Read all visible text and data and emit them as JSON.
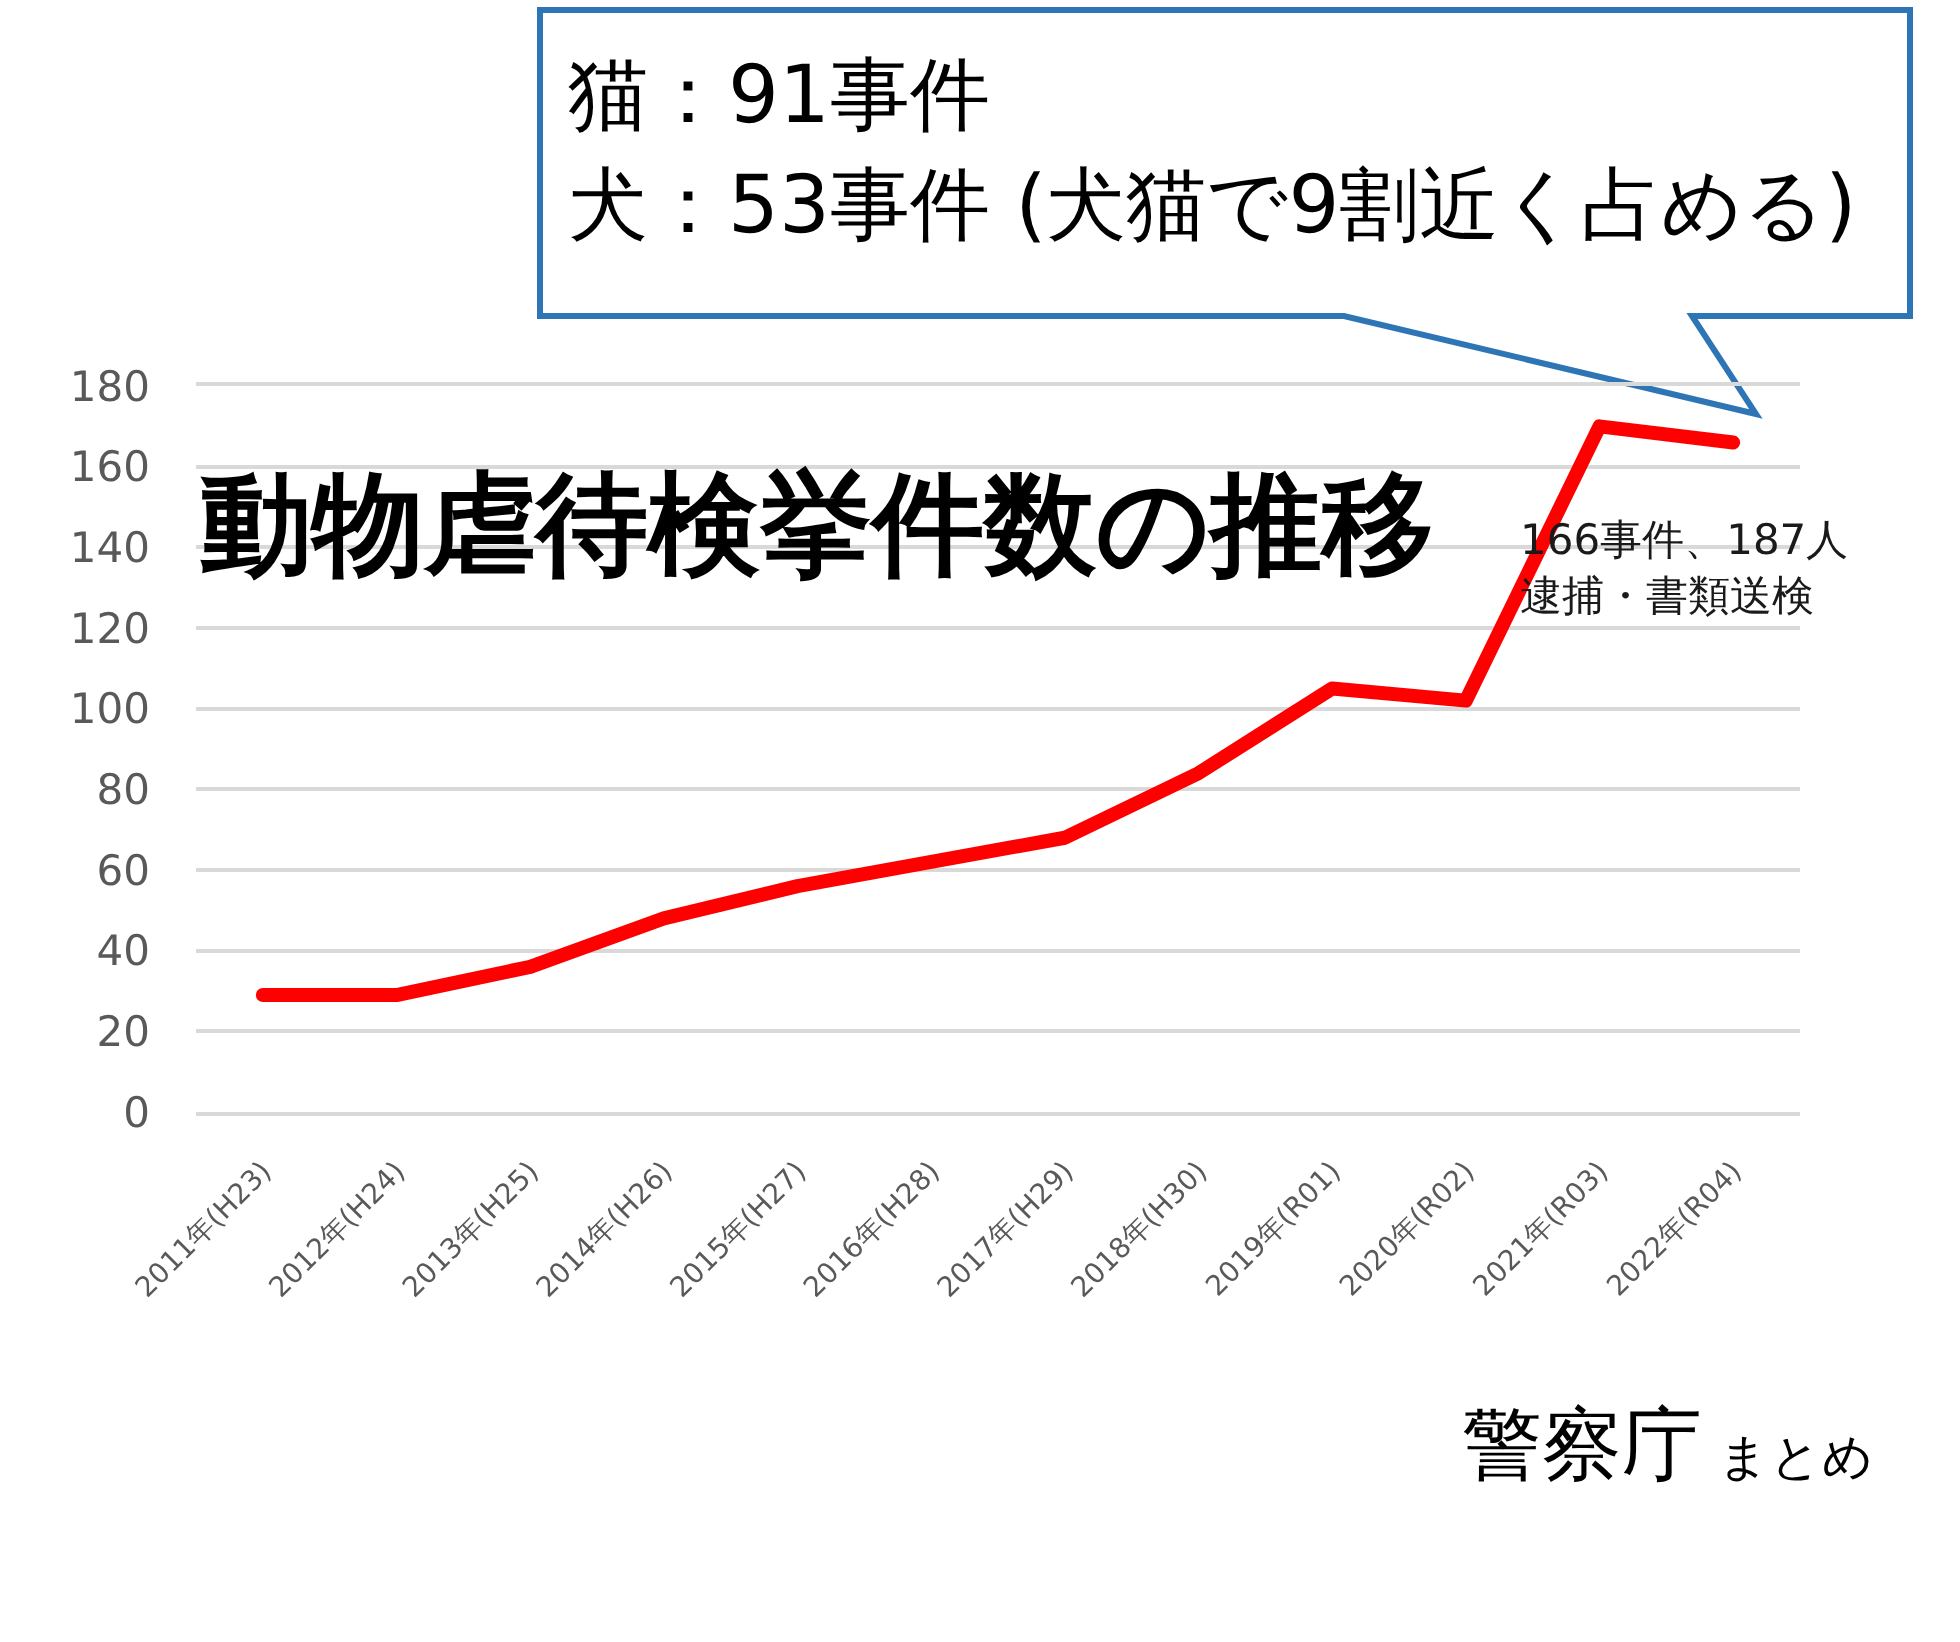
{
  "chart_data": {
    "type": "line",
    "title": "動物虐待検挙件数の推移",
    "categories": [
      "2011年(H23)",
      "2012年(H24)",
      "2013年(H25)",
      "2014年(H26)",
      "2015年(H27)",
      "2016年(H28)",
      "2017年(H29)",
      "2018年(H30)",
      "2019年(R01)",
      "2020年(R02)",
      "2021年(R03)",
      "2022年(R04)"
    ],
    "series": [
      {
        "color": "#ff0000",
        "values": [
          29,
          29,
          36,
          48,
          56,
          62,
          68,
          84,
          105,
          102,
          170,
          166
        ]
      }
    ],
    "ylim": [
      0,
      180
    ],
    "yticks": [
      0,
      20,
      40,
      60,
      80,
      100,
      120,
      140,
      160,
      180
    ],
    "grid": "y",
    "line_style": "solid",
    "annotations": [
      "猫：91事件",
      "犬：53事件 (犬猫で9割近く占める)",
      "166事件、187人",
      "逮捕・書類送検",
      "警察庁",
      "まとめ"
    ]
  }
}
